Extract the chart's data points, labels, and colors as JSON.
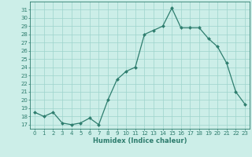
{
  "x": [
    0,
    1,
    2,
    3,
    4,
    5,
    6,
    7,
    8,
    9,
    10,
    11,
    12,
    13,
    14,
    15,
    16,
    17,
    18,
    19,
    20,
    21,
    22,
    23
  ],
  "y": [
    18.5,
    18.0,
    18.5,
    17.2,
    17.0,
    17.2,
    17.8,
    17.0,
    20.0,
    22.5,
    23.5,
    24.0,
    28.0,
    28.5,
    29.0,
    31.2,
    28.8,
    28.8,
    28.8,
    27.5,
    26.5,
    24.5,
    21.0,
    19.5
  ],
  "line_color": "#2e7d6e",
  "marker": "D",
  "markersize": 2.0,
  "linewidth": 0.9,
  "bg_color": "#cceee8",
  "grid_color": "#9dd4cc",
  "xlabel": "Humidex (Indice chaleur)",
  "ylim": [
    16.5,
    32.0
  ],
  "xlim": [
    -0.5,
    23.5
  ],
  "yticks": [
    17,
    18,
    19,
    20,
    21,
    22,
    23,
    24,
    25,
    26,
    27,
    28,
    29,
    30,
    31
  ],
  "xticks": [
    0,
    1,
    2,
    3,
    4,
    5,
    6,
    7,
    8,
    9,
    10,
    11,
    12,
    13,
    14,
    15,
    16,
    17,
    18,
    19,
    20,
    21,
    22,
    23
  ],
  "tick_fontsize": 5.0,
  "label_fontsize": 6.0
}
